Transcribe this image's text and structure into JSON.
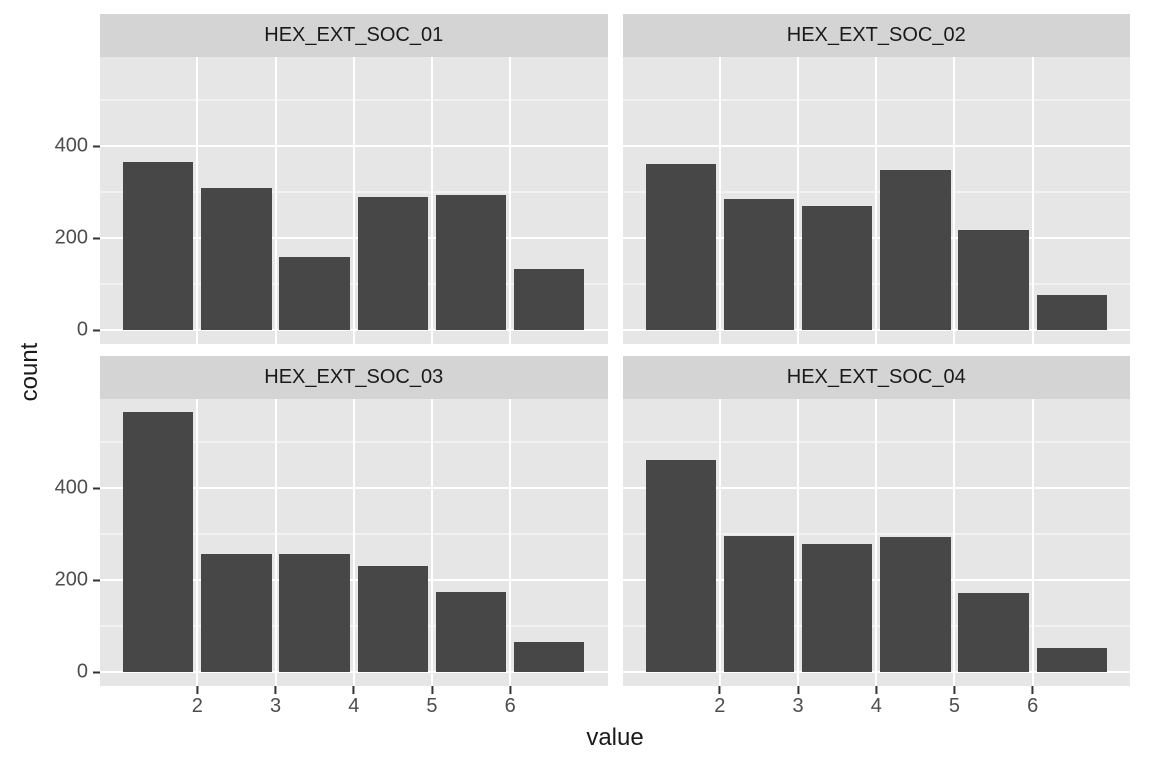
{
  "chart_data": {
    "type": "bar",
    "description": "2x2 faceted histogram of counts by value, ggplot2 grey theme, shared fixed axes",
    "facets": [
      {
        "title": "HEX_EXT_SOC_01",
        "values": [
          365,
          310,
          160,
          290,
          295,
          133
        ]
      },
      {
        "title": "HEX_EXT_SOC_02",
        "values": [
          361,
          286,
          270,
          348,
          217,
          77
        ]
      },
      {
        "title": "HEX_EXT_SOC_03",
        "values": [
          565,
          258,
          257,
          232,
          175,
          65
        ]
      },
      {
        "title": "HEX_EXT_SOC_04",
        "values": [
          462,
          297,
          278,
          295,
          173,
          52
        ]
      }
    ],
    "bar_centers": [
      1.5,
      2.5,
      3.5,
      4.5,
      5.5,
      6.5
    ],
    "bar_width": 0.9,
    "x_ticks": [
      "2",
      "3",
      "4",
      "5",
      "6"
    ],
    "x_tick_values": [
      2,
      3,
      4,
      5,
      6
    ],
    "y_ticks": [
      "400",
      "200",
      "0"
    ],
    "y_tick_values": [
      400,
      200,
      0
    ],
    "y_grid_major": [
      0,
      200,
      400
    ],
    "y_grid_minor": [
      100,
      300,
      500
    ],
    "xlabel": "value",
    "ylabel": "count",
    "x_range": [
      0.755,
      7.245
    ],
    "y_range": [
      -30,
      594
    ],
    "grid": "white major+minor on grey panel",
    "legend": "none",
    "colors": {
      "bar": "#474747",
      "panel_bg": "#E6E6E6",
      "strip_bg": "#D4D4D4",
      "grid": "#FFFFFF",
      "tick_mark": "#333333",
      "axis_text": "#4D4D4D",
      "title_text": "#1A1A1A"
    }
  }
}
